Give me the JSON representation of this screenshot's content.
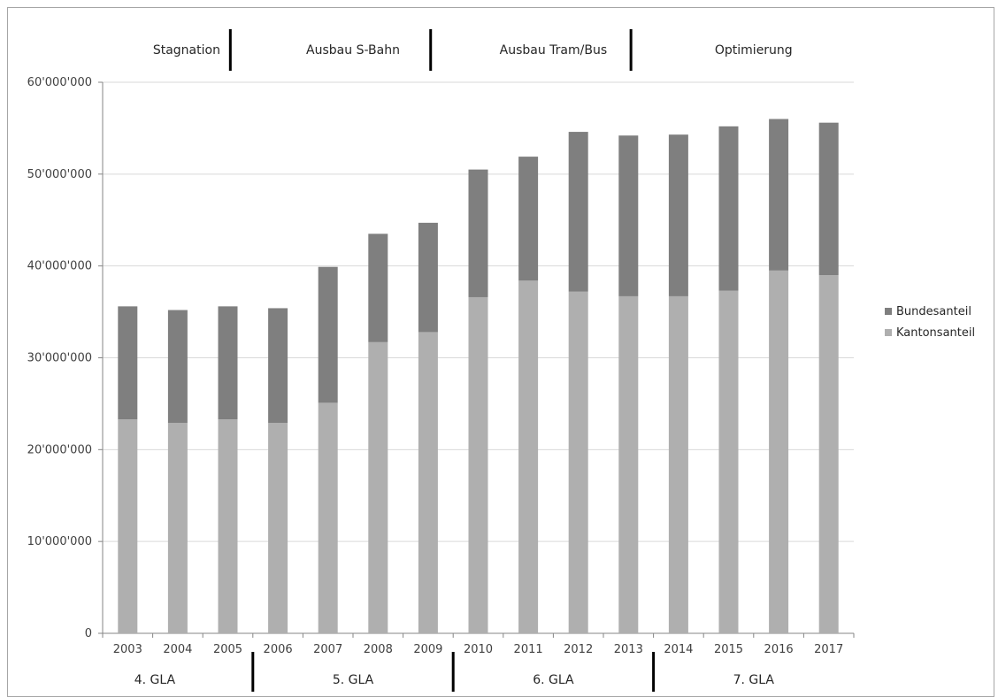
{
  "chart_data": {
    "type": "bar",
    "stacked": true,
    "categories": [
      "2003",
      "2004",
      "2005",
      "2006",
      "2007",
      "2008",
      "2009",
      "2010",
      "2011",
      "2012",
      "2013",
      "2014",
      "2015",
      "2016",
      "2017"
    ],
    "series": [
      {
        "name": "Kantonsanteil",
        "color": "#afafaf",
        "values": [
          23300000,
          22900000,
          23300000,
          22900000,
          25100000,
          31700000,
          32800000,
          36600000,
          38400000,
          37200000,
          36700000,
          36700000,
          37300000,
          39500000,
          39000000
        ]
      },
      {
        "name": "Bundesanteil",
        "color": "#7f7f7f",
        "values": [
          12300000,
          12300000,
          12300000,
          12500000,
          14800000,
          11800000,
          11900000,
          13900000,
          13500000,
          17400000,
          17500000,
          17600000,
          17900000,
          16500000,
          16600000
        ]
      }
    ],
    "legend": [
      "Bundesanteil",
      "Kantonsanteil"
    ],
    "legend_position": "right",
    "ylim": [
      0,
      60000000
    ],
    "yticks": [
      0,
      10000000,
      20000000,
      30000000,
      40000000,
      50000000,
      60000000
    ],
    "ytick_labels": [
      "0",
      "10'000'000",
      "20'000'000",
      "30'000'000",
      "40'000'000",
      "50'000'000",
      "60'000'000"
    ],
    "grid": "horizontal",
    "top_phases": [
      {
        "label": "Stagnation",
        "from": "2003",
        "to": "2005"
      },
      {
        "label": "Ausbau S-Bahn",
        "from": "2006",
        "to": "2009"
      },
      {
        "label": "Ausbau Tram/Bus",
        "from": "2010",
        "to": "2013"
      },
      {
        "label": "Optimierung",
        "from": "2014",
        "to": "2017"
      }
    ],
    "bottom_groups": [
      {
        "label": "4. GLA",
        "from": "2003",
        "to": "2005"
      },
      {
        "label": "5. GLA",
        "from": "2006",
        "to": "2009"
      },
      {
        "label": "6. GLA",
        "from": "2010",
        "to": "2013"
      },
      {
        "label": "7. GLA",
        "from": "2014",
        "to": "2017"
      }
    ]
  }
}
